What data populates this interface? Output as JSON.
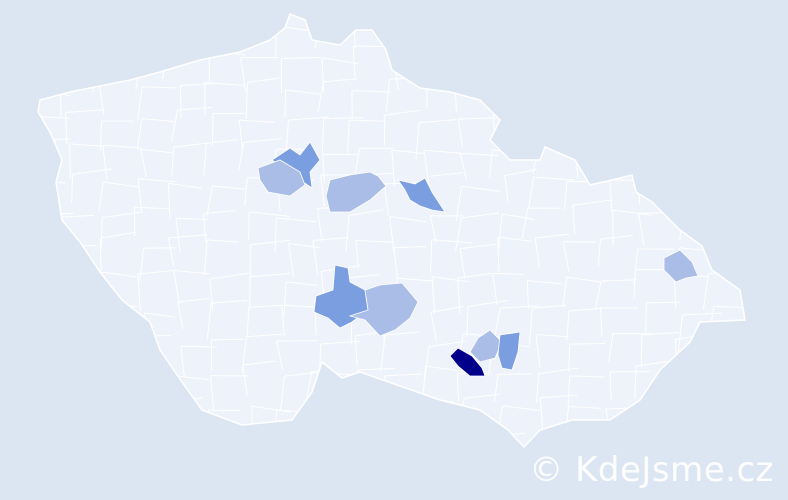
{
  "map": {
    "colors": {
      "background": "#dce6f2",
      "land": "#eef2fa",
      "border": "#ffffff",
      "level_light": "#a9bde6",
      "level_mid": "#7b9ee0",
      "level_dark": "#00008b"
    },
    "highlighted_districts": [
      {
        "level": "mid"
      },
      {
        "level": "light"
      },
      {
        "level": "light"
      },
      {
        "level": "mid"
      },
      {
        "level": "mid"
      },
      {
        "level": "light"
      },
      {
        "level": "light"
      },
      {
        "level": "mid"
      },
      {
        "level": "dark"
      },
      {
        "level": "light"
      }
    ]
  },
  "watermark": "© KdeJsme.cz"
}
